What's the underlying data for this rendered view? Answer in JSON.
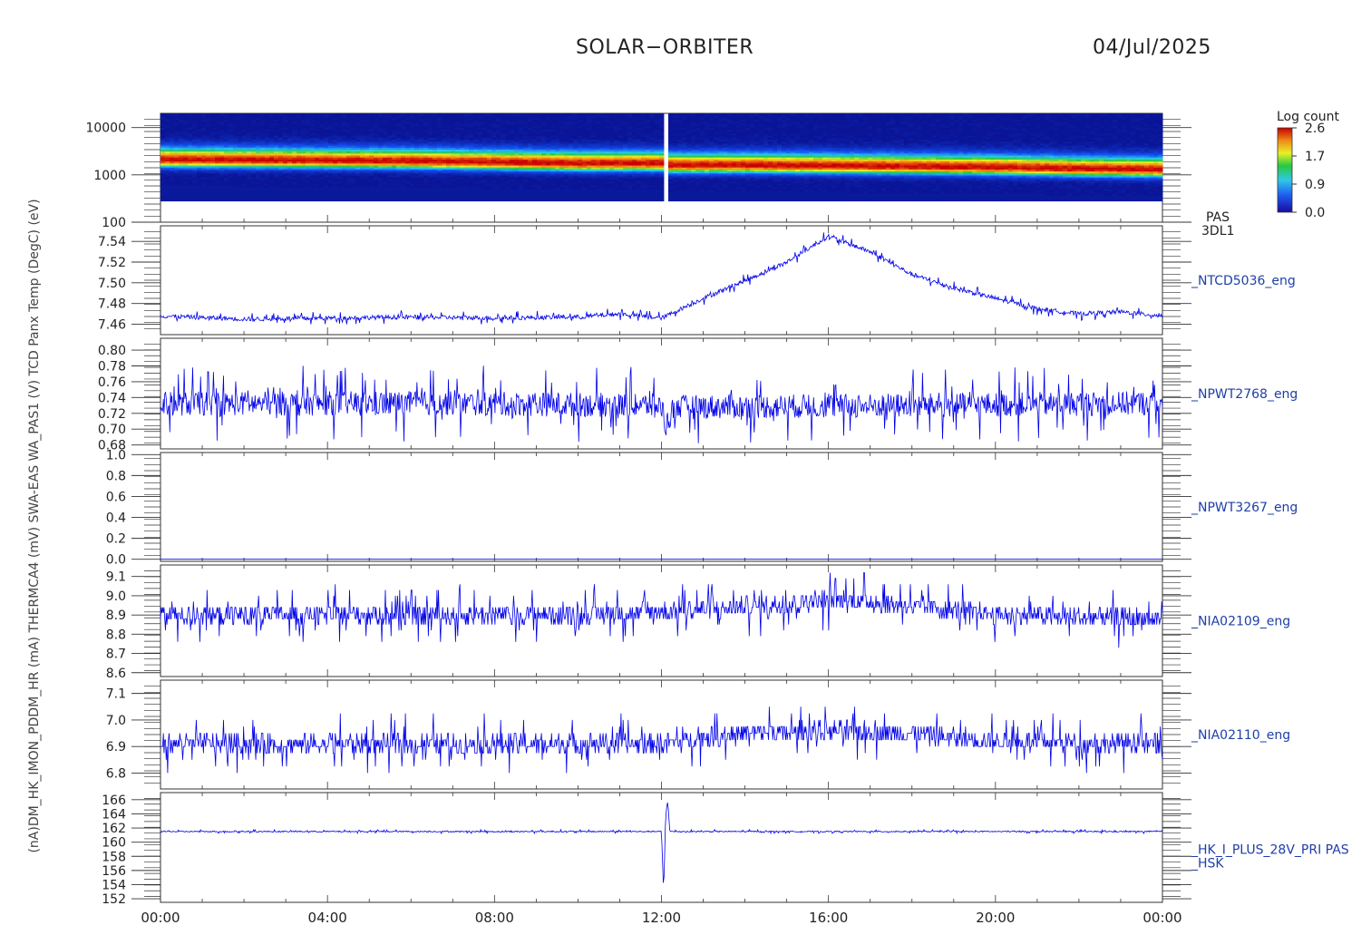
{
  "header": {
    "mission": "SOLAR−ORBITER",
    "date": "04/Jul/2025"
  },
  "left_axis_title": "(nA)DM_HK_IMON_PDDM_HR (mA) THERMCA4 (mV) SWA-EAS WA_PAS1 (V) TCD Panx Temp (DegC) (eV)",
  "x_axis": {
    "ticks": [
      "00:00",
      "04:00",
      "08:00",
      "12:00",
      "16:00",
      "20:00",
      "00:00"
    ],
    "range_hours": [
      0,
      24
    ]
  },
  "colors": {
    "trace": "#0000e8",
    "right_label": "#1e3fa8",
    "axis": "#333333"
  },
  "colorbar": {
    "title": "Log count",
    "ticks": [
      "2.6",
      "1.7",
      "0.9",
      "0.0"
    ],
    "range": [
      0.0,
      2.6
    ]
  },
  "chart_data": [
    {
      "type": "heatmap",
      "panel_id": "pas",
      "label_lines": [
        "PAS",
        "3DL1"
      ],
      "ylabel": "(eV)",
      "y_scale": "log",
      "ylim": [
        100,
        20000
      ],
      "yticks": [
        "10000",
        "1000",
        "100"
      ],
      "ytick_values": [
        10000,
        1000,
        100
      ],
      "peak_energy_profile": {
        "hours": [
          0,
          2,
          4,
          6,
          8,
          10,
          12,
          12.2,
          14,
          16,
          18,
          20,
          22,
          24
        ],
        "energy_ev": [
          2100,
          2050,
          2000,
          1950,
          1850,
          1750,
          1750,
          1600,
          1600,
          1550,
          1500,
          1450,
          1350,
          1300
        ]
      },
      "gap_hours": [
        12.0,
        12.15
      ]
    },
    {
      "type": "line",
      "panel_id": "ntcd",
      "label": "_NTCD5036_eng",
      "ylim": [
        7.45,
        7.555
      ],
      "yticks": [
        "7.54",
        "7.52",
        "7.50",
        "7.48",
        "7.46"
      ],
      "ytick_values": [
        7.54,
        7.52,
        7.5,
        7.48,
        7.46
      ],
      "series": [
        {
          "x": [
            0,
            2,
            4,
            6,
            8,
            10,
            11,
            12,
            13,
            14,
            15,
            16,
            17,
            18,
            19,
            20,
            21,
            22,
            23,
            24
          ],
          "y": [
            7.468,
            7.465,
            7.466,
            7.467,
            7.466,
            7.467,
            7.47,
            7.466,
            7.485,
            7.502,
            7.52,
            7.545,
            7.53,
            7.508,
            7.495,
            7.485,
            7.475,
            7.47,
            7.472,
            7.468
          ],
          "noise": 0.003
        }
      ]
    },
    {
      "type": "line",
      "panel_id": "npwt2768",
      "label": "_NPWT2768_eng",
      "ylim": [
        0.675,
        0.815
      ],
      "yticks": [
        "0.80",
        "0.78",
        "0.76",
        "0.74",
        "0.72",
        "0.70",
        "0.68"
      ],
      "ytick_values": [
        0.8,
        0.78,
        0.76,
        0.74,
        0.72,
        0.7,
        0.68
      ],
      "series": [
        {
          "x": [
            0,
            6,
            12,
            12.1,
            12.3,
            18,
            24
          ],
          "y": [
            0.732,
            0.733,
            0.73,
            0.705,
            0.728,
            0.73,
            0.733
          ],
          "noise": 0.022
        }
      ]
    },
    {
      "type": "line",
      "panel_id": "npwt3267",
      "label": "_NPWT3267_eng",
      "ylim": [
        -0.02,
        1.02
      ],
      "yticks": [
        "1.0",
        "0.8",
        "0.6",
        "0.4",
        "0.2",
        "0.0"
      ],
      "ytick_values": [
        1.0,
        0.8,
        0.6,
        0.4,
        0.2,
        0.0
      ],
      "series": [
        {
          "x": [
            0,
            24
          ],
          "y": [
            0.0,
            0.0
          ],
          "noise": 0
        }
      ]
    },
    {
      "type": "line",
      "panel_id": "nia02109",
      "label": "_NIA02109_eng",
      "ylim": [
        8.58,
        9.16
      ],
      "yticks": [
        "9.1",
        "9.0",
        "8.9",
        "8.8",
        "8.7",
        "8.6"
      ],
      "ytick_values": [
        9.1,
        9.0,
        8.9,
        8.8,
        8.7,
        8.6
      ],
      "series": [
        {
          "x": [
            0,
            6,
            10,
            14,
            16,
            18,
            20,
            24
          ],
          "y": [
            8.9,
            8.9,
            8.9,
            8.94,
            8.98,
            8.95,
            8.9,
            8.88
          ],
          "noise": 0.07,
          "quantum": 0.03
        }
      ]
    },
    {
      "type": "line",
      "panel_id": "nia02110",
      "label": "_NIA02110_eng",
      "ylim": [
        6.74,
        7.15
      ],
      "yticks": [
        "7.1",
        "7.0",
        "6.9",
        "6.8"
      ],
      "ytick_values": [
        7.1,
        7.0,
        6.9,
        6.8
      ],
      "series": [
        {
          "x": [
            0,
            6,
            12,
            14,
            16,
            18,
            20,
            24
          ],
          "y": [
            6.91,
            6.91,
            6.91,
            6.95,
            6.96,
            6.95,
            6.92,
            6.91
          ],
          "noise": 0.05,
          "quantum": 0.025
        }
      ]
    },
    {
      "type": "line",
      "panel_id": "hk",
      "label_lines": [
        "_HK_I_PLUS_28V_PRI PAS",
        "_HSK"
      ],
      "ylim": [
        151.5,
        167
      ],
      "yticks": [
        "166",
        "164",
        "162",
        "160",
        "158",
        "156",
        "154",
        "152"
      ],
      "ytick_values": [
        166,
        164,
        162,
        160,
        158,
        156,
        154,
        152
      ],
      "series": [
        {
          "x": [
            0,
            12.0,
            12.05,
            12.1,
            12.15,
            12.2,
            24
          ],
          "y": [
            161.5,
            161.5,
            153.0,
            163.5,
            166.0,
            161.5,
            161.5
          ],
          "noise": 0.12
        }
      ]
    }
  ]
}
